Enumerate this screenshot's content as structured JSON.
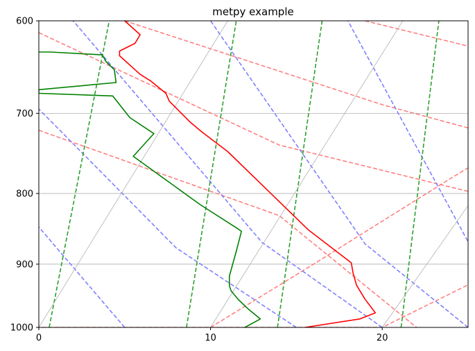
{
  "chart_data": {
    "type": "line",
    "title": "metpy example",
    "xlabel": "",
    "ylabel": "",
    "xlim": [
      0,
      25
    ],
    "ylim": [
      1000,
      600
    ],
    "y_scale": "log",
    "grid": true,
    "x_ticks": [
      0,
      10,
      20
    ],
    "y_ticks": [
      600,
      700,
      800,
      900,
      1000
    ],
    "x_tick_labels": [
      "0",
      "10",
      "20"
    ],
    "y_tick_labels": [
      "600",
      "700",
      "800",
      "900",
      "1000"
    ],
    "series": [
      {
        "color": "#ff0000",
        "style": "solid",
        "points": [
          [
            15.5,
            1000
          ],
          [
            18.7,
            986
          ],
          [
            19.6,
            976
          ],
          [
            19.0,
            954
          ],
          [
            18.5,
            932
          ],
          [
            18.3,
            913
          ],
          [
            18.2,
            898
          ],
          [
            15.7,
            850
          ],
          [
            13.2,
            793
          ],
          [
            11.0,
            746
          ],
          [
            9.5,
            722
          ],
          [
            8.8,
            710
          ],
          [
            7.6,
            686
          ],
          [
            7.4,
            677
          ],
          [
            6.5,
            663
          ],
          [
            5.9,
            656
          ],
          [
            4.7,
            636
          ],
          [
            4.7,
            631
          ],
          [
            5.6,
            623
          ],
          [
            5.9,
            614
          ],
          [
            5.0,
            600
          ]
        ]
      },
      {
        "color": "#008000",
        "style": "solid",
        "points": [
          [
            12.0,
            1000
          ],
          [
            12.9,
            986
          ],
          [
            12.2,
            970
          ],
          [
            11.9,
            962
          ],
          [
            11.6,
            954
          ],
          [
            11.2,
            941
          ],
          [
            11.1,
            933
          ],
          [
            11.1,
            918
          ],
          [
            11.5,
            881
          ],
          [
            11.8,
            852
          ],
          [
            11.5,
            847
          ],
          [
            9.4,
            815
          ],
          [
            5.5,
            752
          ],
          [
            6.7,
            724
          ],
          [
            5.3,
            705
          ],
          [
            4.3,
            680
          ],
          [
            0,
            677
          ],
          [
            0,
            673
          ],
          [
            4.5,
            665
          ],
          [
            4.4,
            651
          ],
          [
            3.9,
            642
          ],
          [
            3.7,
            635
          ],
          [
            0.7,
            632
          ],
          [
            0,
            632
          ]
        ]
      }
    ],
    "background_lines": [
      {
        "kind": "dry adiabats",
        "color": "#ff7f7f",
        "style": "dashed",
        "lines": [
          [
            [
              -2,
              1000
            ],
            [
              10,
              1000
            ],
            [
              16,
              900
            ],
            [
              24,
              780
            ],
            [
              25.5,
              760
            ]
          ],
          [
            [
              10,
              1000
            ],
            [
              20,
              1000
            ],
            [
              25.5,
              925
            ]
          ],
          [
            [
              0,
              720
            ],
            [
              14,
              830
            ],
            [
              22,
              1000
            ]
          ],
          [
            [
              0,
              612
            ],
            [
              14,
              738
            ],
            [
              25.5,
              800
            ]
          ],
          [
            [
              5,
              600
            ],
            [
              20,
              690
            ],
            [
              25.5,
              720
            ]
          ],
          [
            [
              19,
              600
            ],
            [
              25.5,
              628
            ]
          ]
        ]
      },
      {
        "kind": "moist adiabats",
        "color": "#7f7fff",
        "style": "dashed",
        "lines": [
          [
            [
              5,
              1000
            ],
            [
              0,
              846
            ]
          ],
          [
            [
              15,
              1000
            ],
            [
              8,
              876
            ],
            [
              0,
              695
            ]
          ],
          [
            [
              20,
              1000
            ],
            [
              13,
              868
            ],
            [
              2,
              600
            ]
          ],
          [
            [
              25,
              1000
            ],
            [
              19,
              870
            ],
            [
              10,
              600
            ]
          ],
          [
            [
              25.5,
              890
            ],
            [
              18,
              600
            ]
          ]
        ]
      },
      {
        "kind": "mixing ratio lines",
        "color": "#2ca02c",
        "style": "dashed",
        "lines": [
          [
            [
              0.6,
              1000
            ],
            [
              4.1,
              600
            ]
          ],
          [
            [
              8.6,
              1000
            ],
            [
              11.5,
              600
            ]
          ],
          [
            [
              13.9,
              1000
            ],
            [
              16.5,
              600
            ]
          ],
          [
            [
              21.1,
              1000
            ],
            [
              23.3,
              600
            ]
          ]
        ]
      },
      {
        "kind": "isotherms",
        "color": "#b0b0b0",
        "style": "solid",
        "lines": [
          [
            [
              0,
              1000
            ],
            [
              11,
              600
            ]
          ],
          [
            [
              10,
              1000
            ],
            [
              21.2,
              600
            ]
          ],
          [
            [
              20,
              1000
            ],
            [
              25.5,
              800
            ]
          ]
        ]
      }
    ]
  }
}
